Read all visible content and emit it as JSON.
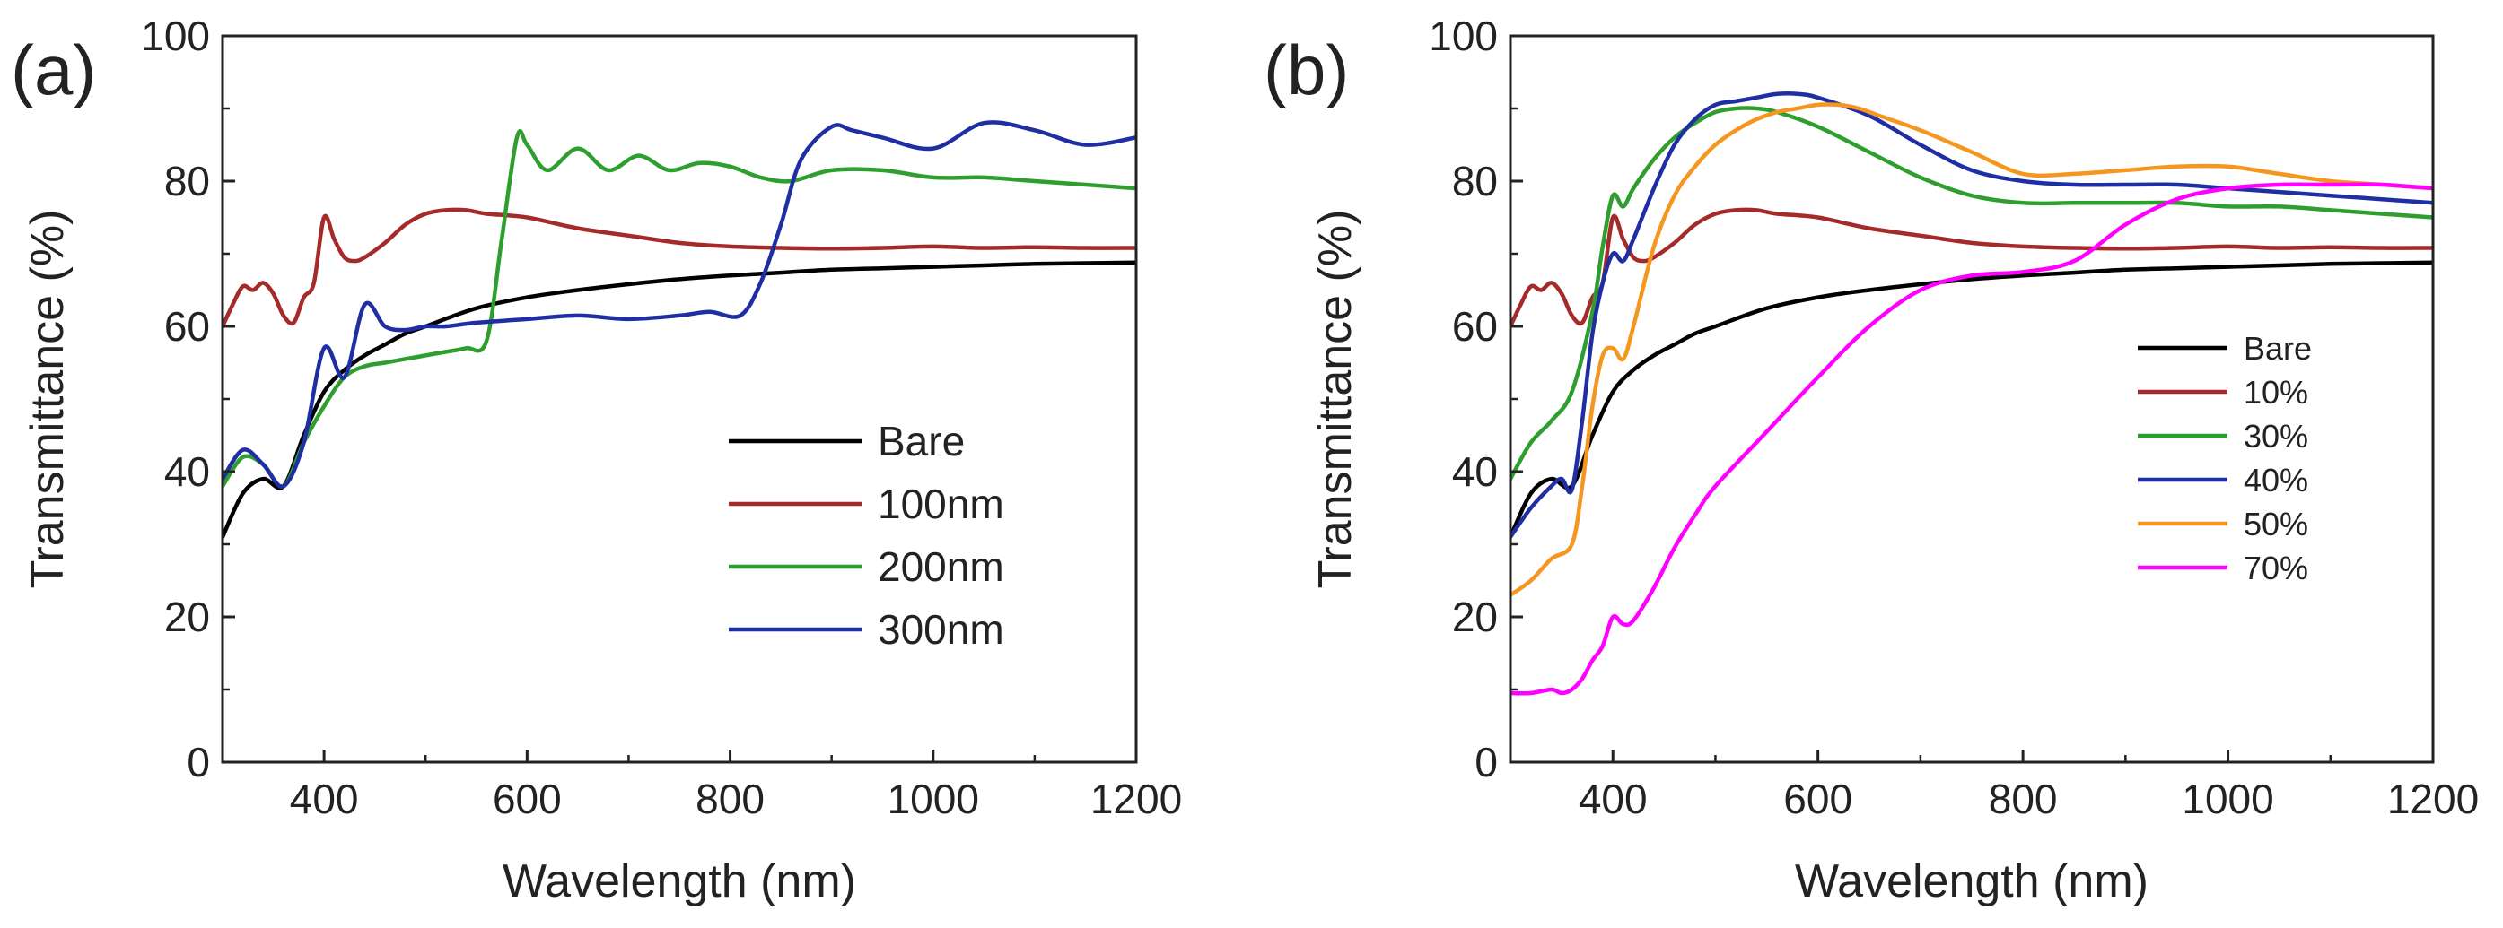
{
  "chart_data": [
    {
      "type": "line",
      "panel_label": "(a)",
      "title": "",
      "xlabel": "Wavelength (nm)",
      "ylabel": "Transmittance (%)",
      "xlim": [
        300,
        1200
      ],
      "ylim": [
        0,
        100
      ],
      "xticks": [
        400,
        600,
        800,
        1000,
        1200
      ],
      "yticks": [
        0,
        20,
        40,
        60,
        80,
        100
      ],
      "legend_position": "lower-right",
      "series": [
        {
          "name": "Bare",
          "color": "#000000",
          "x": [
            300,
            320,
            340,
            360,
            380,
            400,
            420,
            440,
            460,
            480,
            500,
            550,
            600,
            650,
            700,
            750,
            800,
            850,
            900,
            950,
            1000,
            1050,
            1100,
            1150,
            1200
          ],
          "y": [
            31,
            37,
            39,
            38,
            45,
            51,
            54,
            56,
            57.5,
            59,
            60,
            62.5,
            64,
            65,
            65.8,
            66.5,
            67,
            67.4,
            67.8,
            68,
            68.2,
            68.4,
            68.6,
            68.7,
            68.8
          ]
        },
        {
          "name": "100nm",
          "color": "#a52a2a",
          "x": [
            300,
            310,
            320,
            330,
            340,
            350,
            360,
            370,
            380,
            390,
            400,
            410,
            420,
            430,
            440,
            460,
            480,
            500,
            520,
            540,
            560,
            600,
            650,
            700,
            750,
            800,
            850,
            900,
            950,
            1000,
            1050,
            1100,
            1150,
            1200
          ],
          "y": [
            60,
            63,
            65.5,
            65,
            66,
            64.5,
            61.5,
            60.5,
            64,
            66,
            75,
            72,
            69.5,
            69,
            69.5,
            71.5,
            74,
            75.5,
            76,
            76,
            75.5,
            75,
            73.5,
            72.5,
            71.5,
            71,
            70.8,
            70.7,
            70.8,
            71,
            70.8,
            70.9,
            70.8,
            70.8
          ]
        },
        {
          "name": "200nm",
          "color": "#2e9e2e",
          "x": [
            300,
            320,
            340,
            360,
            380,
            400,
            420,
            440,
            460,
            480,
            500,
            520,
            540,
            560,
            575,
            590,
            600,
            620,
            650,
            680,
            710,
            740,
            770,
            800,
            830,
            860,
            900,
            950,
            1000,
            1050,
            1100,
            1150,
            1200
          ],
          "y": [
            38,
            42,
            41,
            38,
            44,
            49,
            53,
            54.5,
            55,
            55.5,
            56,
            56.5,
            57,
            58,
            72,
            86,
            85,
            81.5,
            84.5,
            81.5,
            83.5,
            81.5,
            82.5,
            82,
            80.5,
            80,
            81.5,
            81.5,
            80.5,
            80.5,
            80,
            79.5,
            79
          ]
        },
        {
          "name": "300nm",
          "color": "#1f2fa3",
          "x": [
            300,
            320,
            340,
            360,
            380,
            400,
            420,
            440,
            460,
            480,
            500,
            520,
            550,
            600,
            650,
            700,
            750,
            780,
            810,
            830,
            850,
            870,
            900,
            920,
            950,
            1000,
            1050,
            1100,
            1150,
            1200
          ],
          "y": [
            39,
            43,
            41,
            38,
            44,
            57,
            53,
            63,
            60,
            59.5,
            60,
            60,
            60.5,
            61,
            61.5,
            61,
            61.5,
            62,
            61.5,
            66,
            74,
            83,
            87.5,
            87,
            86,
            84.5,
            88,
            87,
            85,
            86
          ]
        }
      ]
    },
    {
      "type": "line",
      "panel_label": "(b)",
      "title": "",
      "xlabel": "Wavelength (nm)",
      "ylabel": "Transmittance (%)",
      "xlim": [
        300,
        1200
      ],
      "ylim": [
        0,
        100
      ],
      "xticks": [
        400,
        600,
        800,
        1000,
        1200
      ],
      "yticks": [
        0,
        20,
        40,
        60,
        80,
        100
      ],
      "legend_position": "lower-right",
      "series": [
        {
          "name": "Bare",
          "color": "#000000",
          "x": [
            300,
            320,
            340,
            360,
            380,
            400,
            420,
            440,
            460,
            480,
            500,
            550,
            600,
            650,
            700,
            750,
            800,
            850,
            900,
            950,
            1000,
            1050,
            1100,
            1150,
            1200
          ],
          "y": [
            31,
            37,
            39,
            38,
            45,
            51,
            54,
            56,
            57.5,
            59,
            60,
            62.5,
            64,
            65,
            65.8,
            66.5,
            67,
            67.4,
            67.8,
            68,
            68.2,
            68.4,
            68.6,
            68.7,
            68.8
          ]
        },
        {
          "name": "10%",
          "color": "#a52a2a",
          "x": [
            300,
            310,
            320,
            330,
            340,
            350,
            360,
            370,
            380,
            390,
            400,
            410,
            420,
            430,
            440,
            460,
            480,
            500,
            520,
            540,
            560,
            600,
            650,
            700,
            750,
            800,
            850,
            900,
            950,
            1000,
            1050,
            1100,
            1150,
            1200
          ],
          "y": [
            60,
            63,
            65.5,
            65,
            66,
            64.5,
            61.5,
            60.5,
            64,
            66,
            75,
            72,
            69.5,
            69,
            69.5,
            71.5,
            74,
            75.5,
            76,
            76,
            75.5,
            75,
            73.5,
            72.5,
            71.5,
            71,
            70.8,
            70.7,
            70.8,
            71,
            70.8,
            70.9,
            70.8,
            70.8
          ]
        },
        {
          "name": "30%",
          "color": "#2e9e2e",
          "x": [
            300,
            320,
            340,
            360,
            380,
            390,
            400,
            410,
            420,
            440,
            460,
            480,
            500,
            520,
            540,
            560,
            600,
            650,
            700,
            750,
            800,
            850,
            900,
            950,
            1000,
            1050,
            1100,
            1150,
            1200
          ],
          "y": [
            39,
            44,
            47,
            51,
            62,
            71,
            78,
            76.5,
            79,
            83,
            86,
            88,
            89.5,
            90,
            90,
            89.5,
            87.5,
            84,
            80.5,
            78,
            77,
            77,
            77,
            77,
            76.5,
            76.5,
            76,
            75.5,
            75
          ]
        },
        {
          "name": "40%",
          "color": "#1f2fa3",
          "x": [
            300,
            320,
            340,
            350,
            360,
            370,
            380,
            390,
            400,
            410,
            420,
            440,
            460,
            480,
            500,
            520,
            540,
            560,
            580,
            600,
            650,
            700,
            750,
            800,
            850,
            900,
            950,
            1000,
            1050,
            1100,
            1150,
            1200
          ],
          "y": [
            31,
            35,
            38,
            39,
            37.5,
            47,
            59,
            66,
            70,
            69,
            72,
            79,
            85,
            88.5,
            90.5,
            91,
            91.5,
            92,
            92,
            91.5,
            89,
            85,
            81.5,
            80,
            79.5,
            79.5,
            79.5,
            79,
            78.5,
            78,
            77.5,
            77
          ]
        },
        {
          "name": "50%",
          "color": "#f5961e",
          "x": [
            300,
            320,
            340,
            360,
            370,
            380,
            390,
            400,
            410,
            420,
            440,
            460,
            480,
            500,
            520,
            540,
            560,
            580,
            600,
            620,
            640,
            660,
            700,
            750,
            800,
            850,
            900,
            950,
            1000,
            1050,
            1100,
            1150,
            1200
          ],
          "y": [
            23,
            25,
            28,
            30,
            38,
            49,
            56,
            57,
            55.5,
            60,
            71,
            78,
            82,
            85,
            87,
            88.5,
            89.5,
            90,
            90.5,
            90.5,
            90,
            89,
            87,
            84,
            81,
            81,
            81.5,
            82,
            82,
            81,
            80,
            79.5,
            79
          ]
        },
        {
          "name": "70%",
          "color": "#ff00ff",
          "x": [
            300,
            320,
            340,
            350,
            360,
            370,
            380,
            390,
            400,
            410,
            420,
            440,
            460,
            480,
            500,
            550,
            600,
            650,
            700,
            750,
            800,
            850,
            900,
            950,
            1000,
            1050,
            1100,
            1150,
            1200
          ],
          "y": [
            9.5,
            9.5,
            10,
            9.5,
            10,
            11.5,
            14,
            16,
            20,
            19,
            19.5,
            24,
            29.5,
            34,
            38,
            45.5,
            53,
            60,
            65,
            67,
            67.5,
            69,
            74,
            77.5,
            79,
            79.5,
            79.5,
            79.5,
            79
          ]
        }
      ]
    }
  ]
}
